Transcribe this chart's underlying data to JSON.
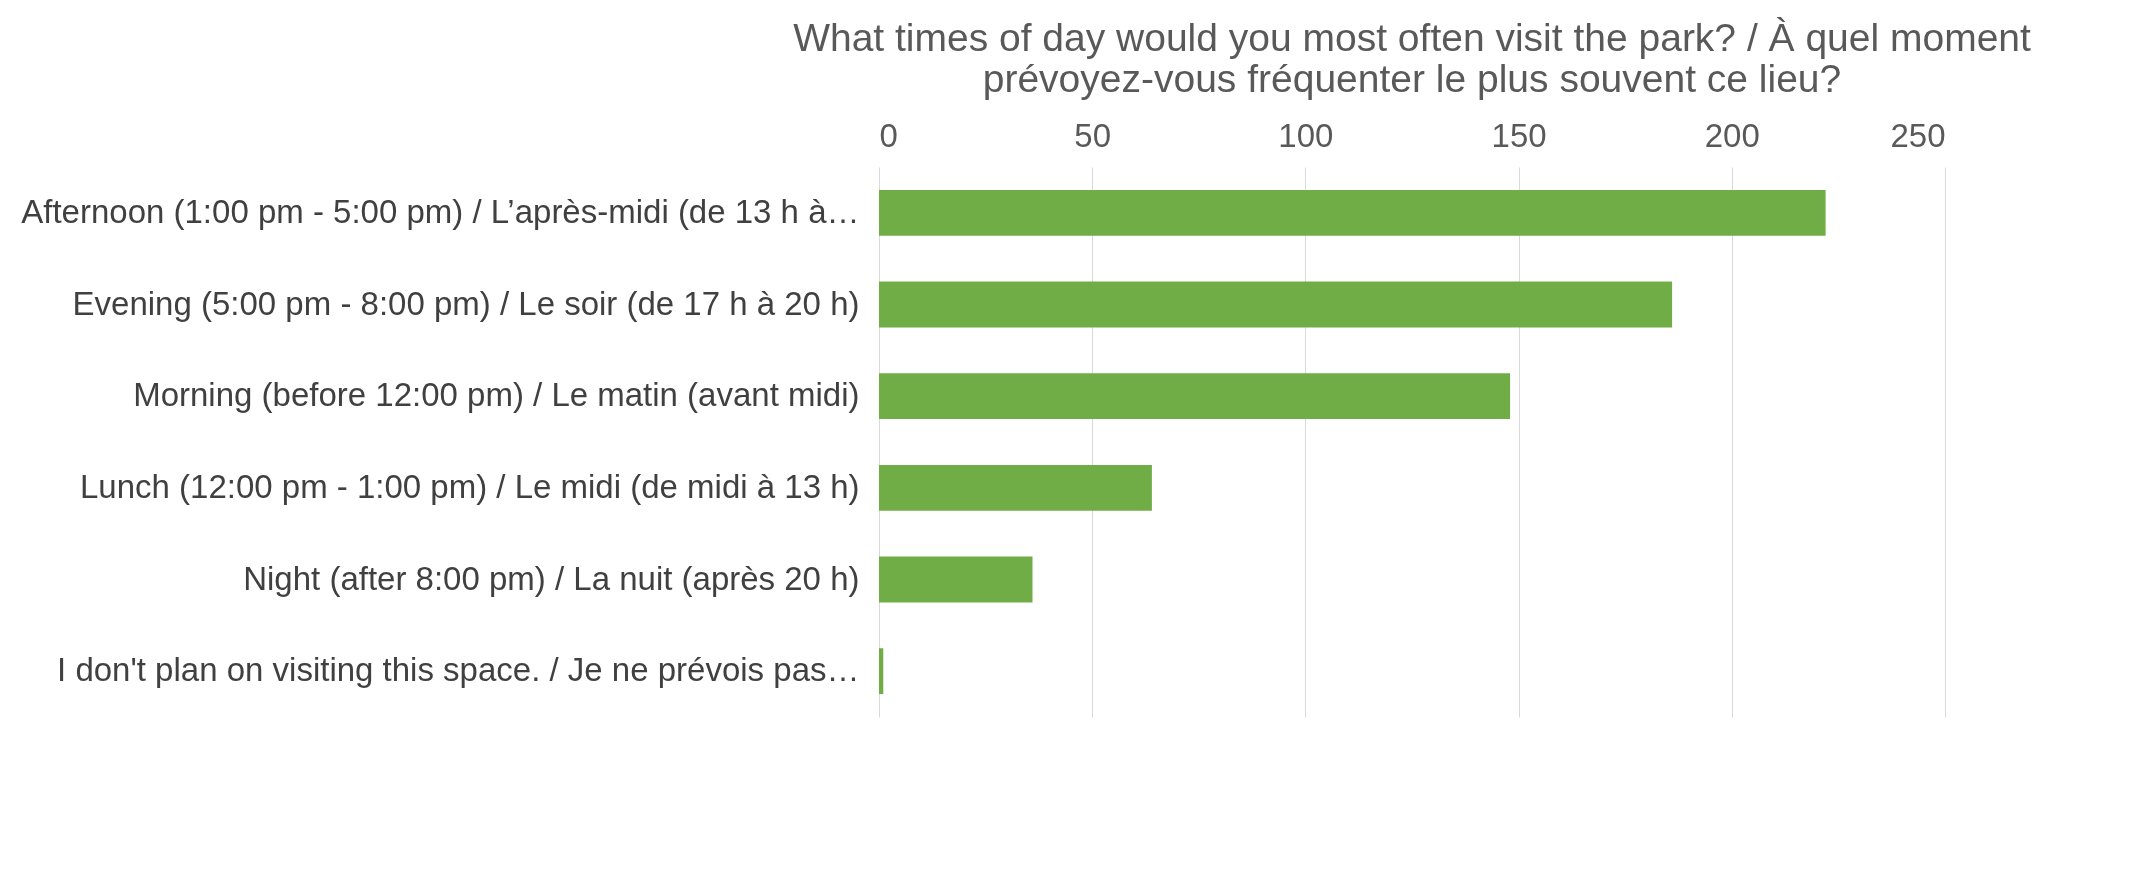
{
  "chart_data": {
    "type": "bar",
    "orientation": "horizontal",
    "title": "What times of day would you most often visit the park? / À quel moment\nprévoyez-vous fréquenter le plus souvent ce lieu?",
    "categories": [
      "Afternoon (1:00 pm - 5:00 pm) / L’après-midi (de 13 h à…",
      "Evening (5:00 pm - 8:00 pm) / Le soir (de 17 h à 20 h)",
      "Morning (before 12:00 pm) / Le matin (avant midi)",
      "Lunch (12:00 pm - 1:00 pm) / Le midi (de midi à 13 h)",
      "Night (after 8:00 pm) / La nuit (après 20 h)",
      "I don't plan on visiting this space. / Je ne prévois pas…"
    ],
    "values": [
      222,
      186,
      148,
      64,
      36,
      1
    ],
    "color": "#70ad47",
    "xlim": [
      0,
      250
    ],
    "xticks": [
      0,
      50,
      100,
      150,
      200,
      250
    ],
    "grid": "x"
  }
}
